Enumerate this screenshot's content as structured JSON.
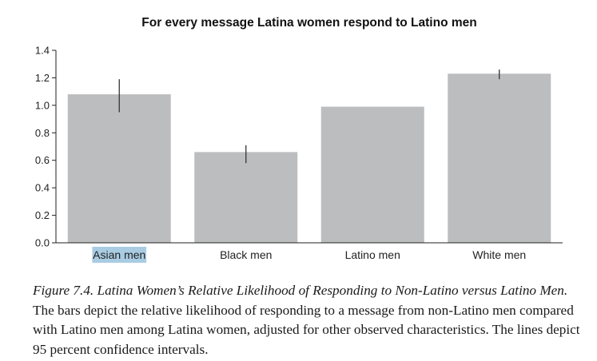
{
  "chart_data": {
    "type": "bar",
    "title": "For every message Latina women respond to Latino men",
    "categories": [
      "Asian men",
      "Black men",
      "Latino men",
      "White men"
    ],
    "values": [
      1.08,
      0.66,
      0.99,
      1.23
    ],
    "ci_low": [
      0.95,
      0.58,
      null,
      1.19
    ],
    "ci_high": [
      1.19,
      0.71,
      null,
      1.26
    ],
    "ylim": [
      0,
      1.4
    ],
    "yticks": [
      "0.0",
      "0.2",
      "0.4",
      "0.6",
      "0.8",
      "1.0",
      "1.2",
      "1.4"
    ],
    "xlabel": "",
    "ylabel": "",
    "grid": false,
    "bar_color": "#bcbdbf",
    "error_color": "#333333",
    "highlighted_label": "Asian men",
    "highlight_color": "#a9cce3"
  },
  "caption": {
    "figure_label": "Figure 7.4.",
    "figure_title": "Latina Women’s Relative Likelihood of Responding to Non-Latino versus Latino Men.",
    "body": "The bars depict the relative likelihood of responding to a message from non-Latino men compared with Latino men among Latina women, adjusted for other observed characteristics. The lines depict 95 percent confidence intervals."
  }
}
